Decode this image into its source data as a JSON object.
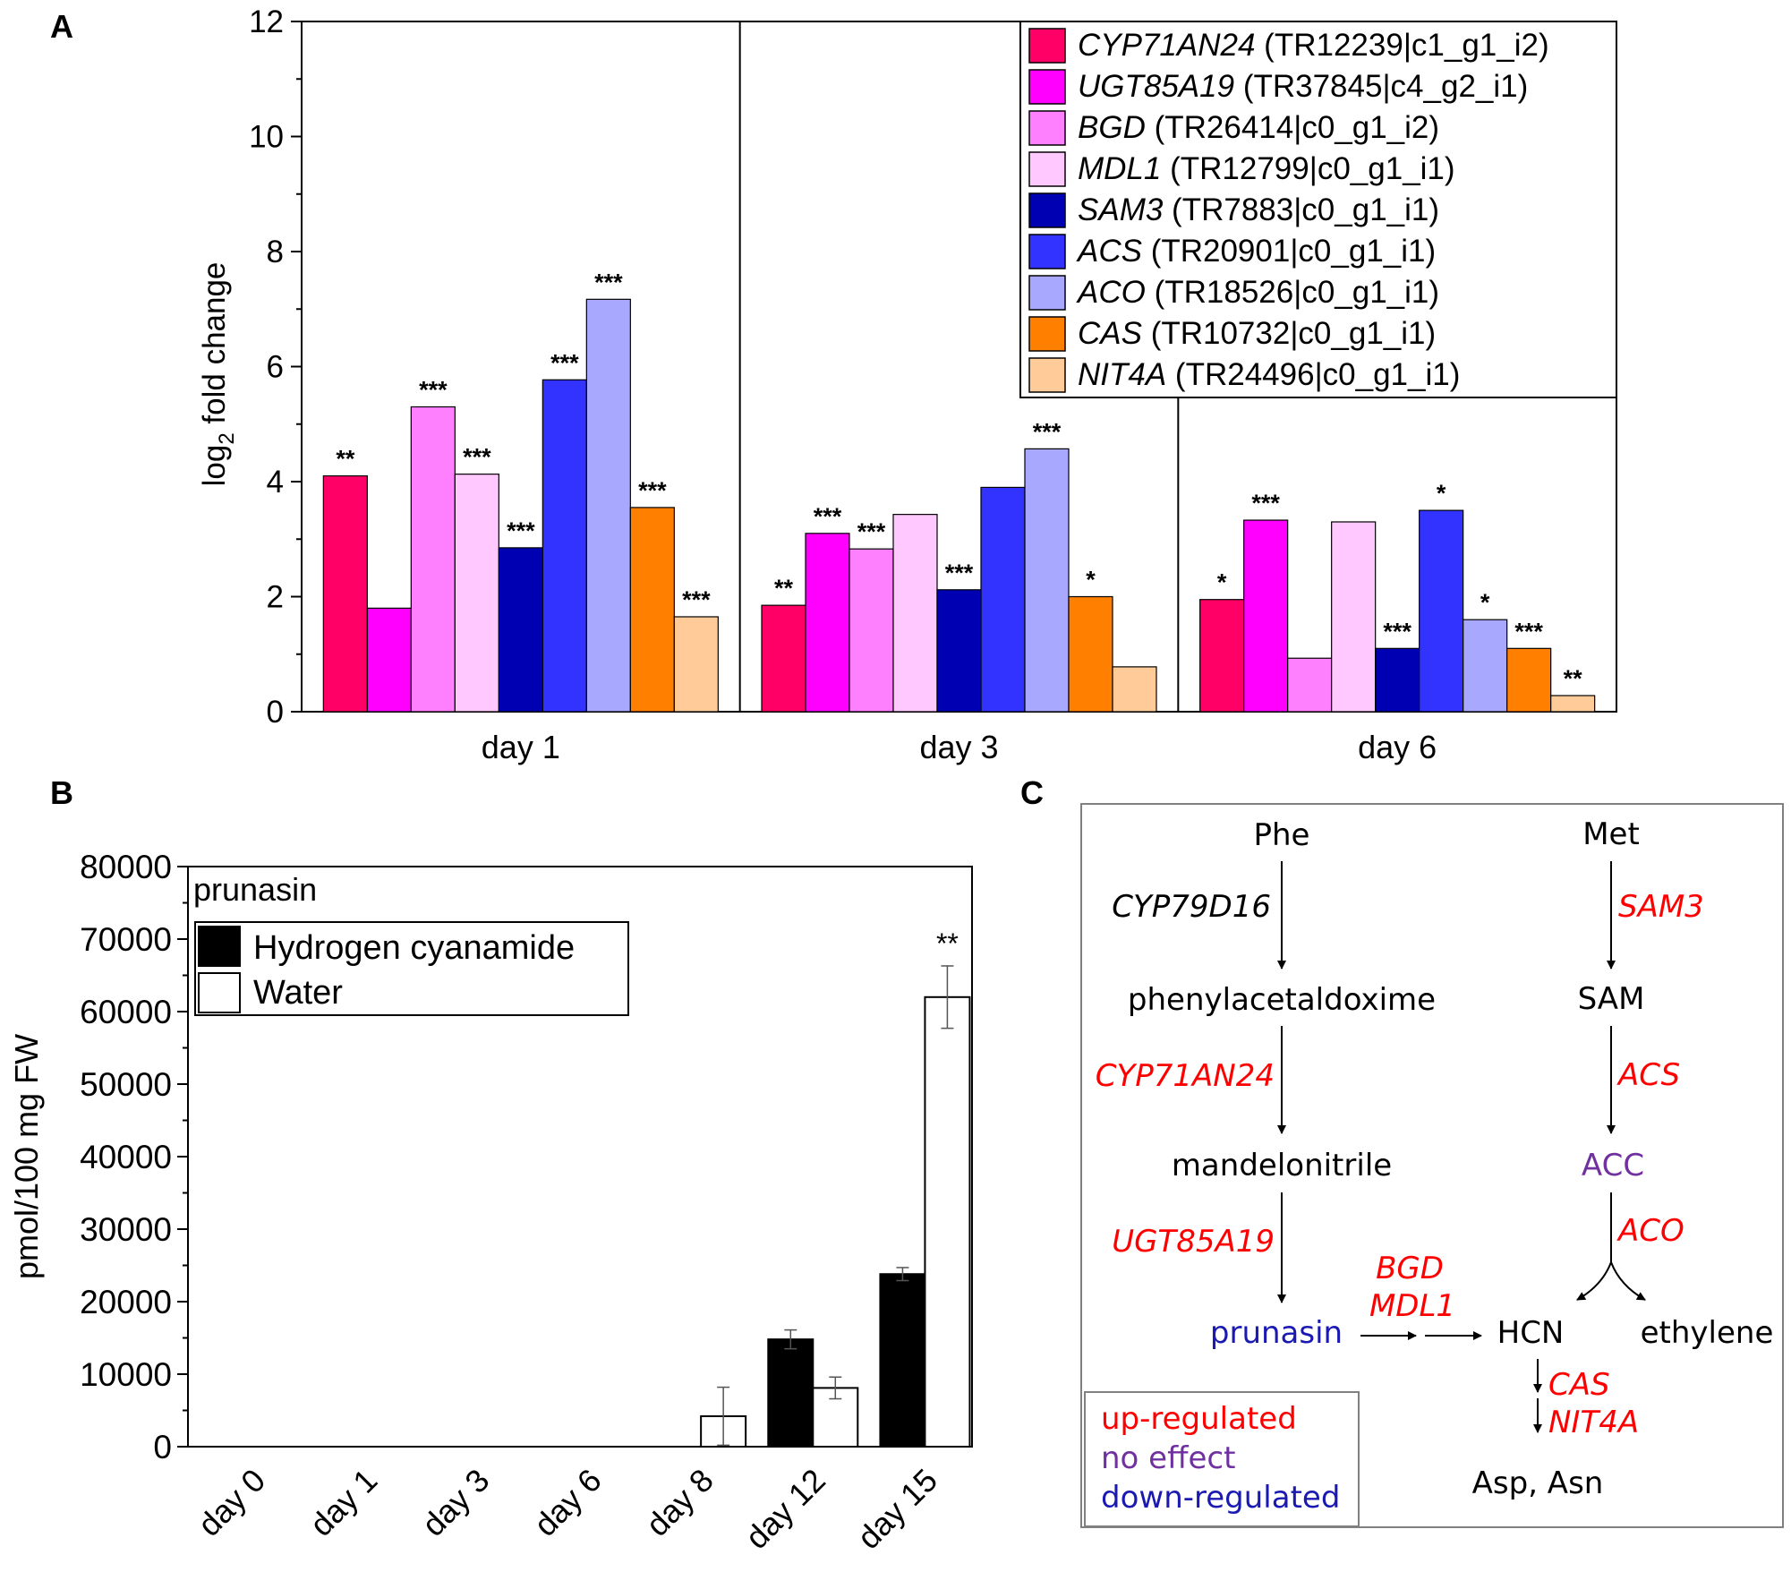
{
  "panel_labels": [
    "A",
    "B",
    "C"
  ],
  "colors": {
    "CYP71AN24": "#ff0066",
    "UGT85A19": "#ff00ff",
    "BGD": "#ff80ff",
    "MDL1": "#ffc8ff",
    "SAM3": "#0000b3",
    "ACS": "#3333ff",
    "ACO": "#a8a8ff",
    "CAS": "#ff7f00",
    "NIT4A": "#ffcc99",
    "up": "#ff0000",
    "no_effect": "#7030a0",
    "down": "#1a1ab3"
  },
  "chart_data": [
    {
      "type": "bar",
      "title": "",
      "xlabel": "",
      "ylabel": "log",
      "ylabel_sub": "2",
      "ylabel_rest": " fold change",
      "ylim": [
        0,
        12
      ],
      "yticks": [
        "0",
        "2",
        "4",
        "6",
        "8",
        "10",
        "12"
      ],
      "categories": [
        "day 1",
        "day 3",
        "day 6"
      ],
      "series": [
        {
          "key": "CYP71AN24",
          "gene": "CYP71AN24",
          "id": "(TR12239|c1_g1_i2)",
          "values": [
            4.1,
            1.85,
            1.95
          ],
          "stars": [
            "**",
            "**",
            "*"
          ]
        },
        {
          "key": "UGT85A19",
          "gene": "UGT85A19",
          "id": "(TR37845|c4_g2_i1)",
          "values": [
            1.8,
            3.1,
            3.33
          ],
          "stars": [
            "",
            "***",
            "***"
          ]
        },
        {
          "key": "BGD",
          "gene": "BGD",
          "id": "(TR26414|c0_g1_i2)",
          "values": [
            5.3,
            2.83,
            0.93
          ],
          "stars": [
            "***",
            "***",
            ""
          ]
        },
        {
          "key": "MDL1",
          "gene": "MDL1",
          "id": "(TR12799|c0_g1_i1)",
          "values": [
            4.13,
            3.43,
            3.3
          ],
          "stars": [
            "***",
            "",
            ""
          ]
        },
        {
          "key": "SAM3",
          "gene": "SAM3",
          "id": "(TR7883|c0_g1_i1)",
          "values": [
            2.85,
            2.12,
            1.1
          ],
          "stars": [
            "***",
            "***",
            "***"
          ]
        },
        {
          "key": "ACS",
          "gene": "ACS",
          "id": "(TR20901|c0_g1_i1)",
          "values": [
            5.77,
            3.9,
            3.5
          ],
          "stars": [
            "***",
            "",
            "*"
          ]
        },
        {
          "key": "ACO",
          "gene": "ACO",
          "id": "(TR18526|c0_g1_i1)",
          "values": [
            7.17,
            4.57,
            1.6
          ],
          "stars": [
            "***",
            "***",
            "*"
          ]
        },
        {
          "key": "CAS",
          "gene": "CAS",
          "id": "(TR10732|c0_g1_i1)",
          "values": [
            3.55,
            2.0,
            1.1
          ],
          "stars": [
            "***",
            "*",
            "***"
          ]
        },
        {
          "key": "NIT4A",
          "gene": "NIT4A",
          "id": "(TR24496|c0_g1_i1)",
          "values": [
            1.65,
            0.78,
            0.28
          ],
          "stars": [
            "***",
            "",
            "**"
          ]
        }
      ],
      "legend_position": "top-right"
    },
    {
      "type": "bar",
      "title": "prunasin",
      "xlabel": "",
      "ylabel": "pmol/100 mg FW",
      "ylim": [
        0,
        80000
      ],
      "yticks": [
        "0",
        "10000",
        "20000",
        "30000",
        "40000",
        "50000",
        "60000",
        "70000",
        "80000"
      ],
      "categories": [
        "day 0",
        "day 1",
        "day 3",
        "day 6",
        "day 8",
        "day 12",
        "day 15"
      ],
      "series": [
        {
          "name": "Hydrogen cyanamide",
          "fill": "#000000",
          "values": [
            0,
            0,
            0,
            0,
            0,
            14800,
            23800
          ],
          "errors": [
            0,
            0,
            0,
            0,
            0,
            1300,
            900
          ],
          "stars": [
            "",
            "",
            "",
            "",
            "",
            "",
            ""
          ]
        },
        {
          "name": "Water",
          "fill": "#ffffff",
          "values": [
            0,
            0,
            0,
            0,
            4200,
            8100,
            62000
          ],
          "errors": [
            0,
            0,
            0,
            0,
            4000,
            1500,
            4300
          ],
          "stars": [
            "",
            "",
            "",
            "",
            "",
            "",
            "**"
          ]
        }
      ],
      "legend_position": "top-left"
    }
  ],
  "pathway": {
    "left": {
      "phe": "Phe",
      "cyp79": "CYP79D16",
      "phenylacetaldoxime": "phenylacetaldoxime",
      "cyp71": "CYP71AN24",
      "mandelonitrile": "mandelonitrile",
      "ugt": "UGT85A19",
      "prunasin": "prunasin"
    },
    "right": {
      "met": "Met",
      "sam3": "SAM3",
      "sam": "SAM",
      "acs": "ACS",
      "acc": "ACC",
      "aco": "ACO",
      "ethylene": "ethylene"
    },
    "bgd": "BGD",
    "mdl1": "MDL1",
    "hcn": "HCN",
    "cas": "CAS",
    "nit4a": "NIT4A",
    "asp_asn": "Asp, Asn",
    "legend": {
      "up": "up-regulated",
      "no_effect": "no effect",
      "down": "down-regulated"
    }
  }
}
